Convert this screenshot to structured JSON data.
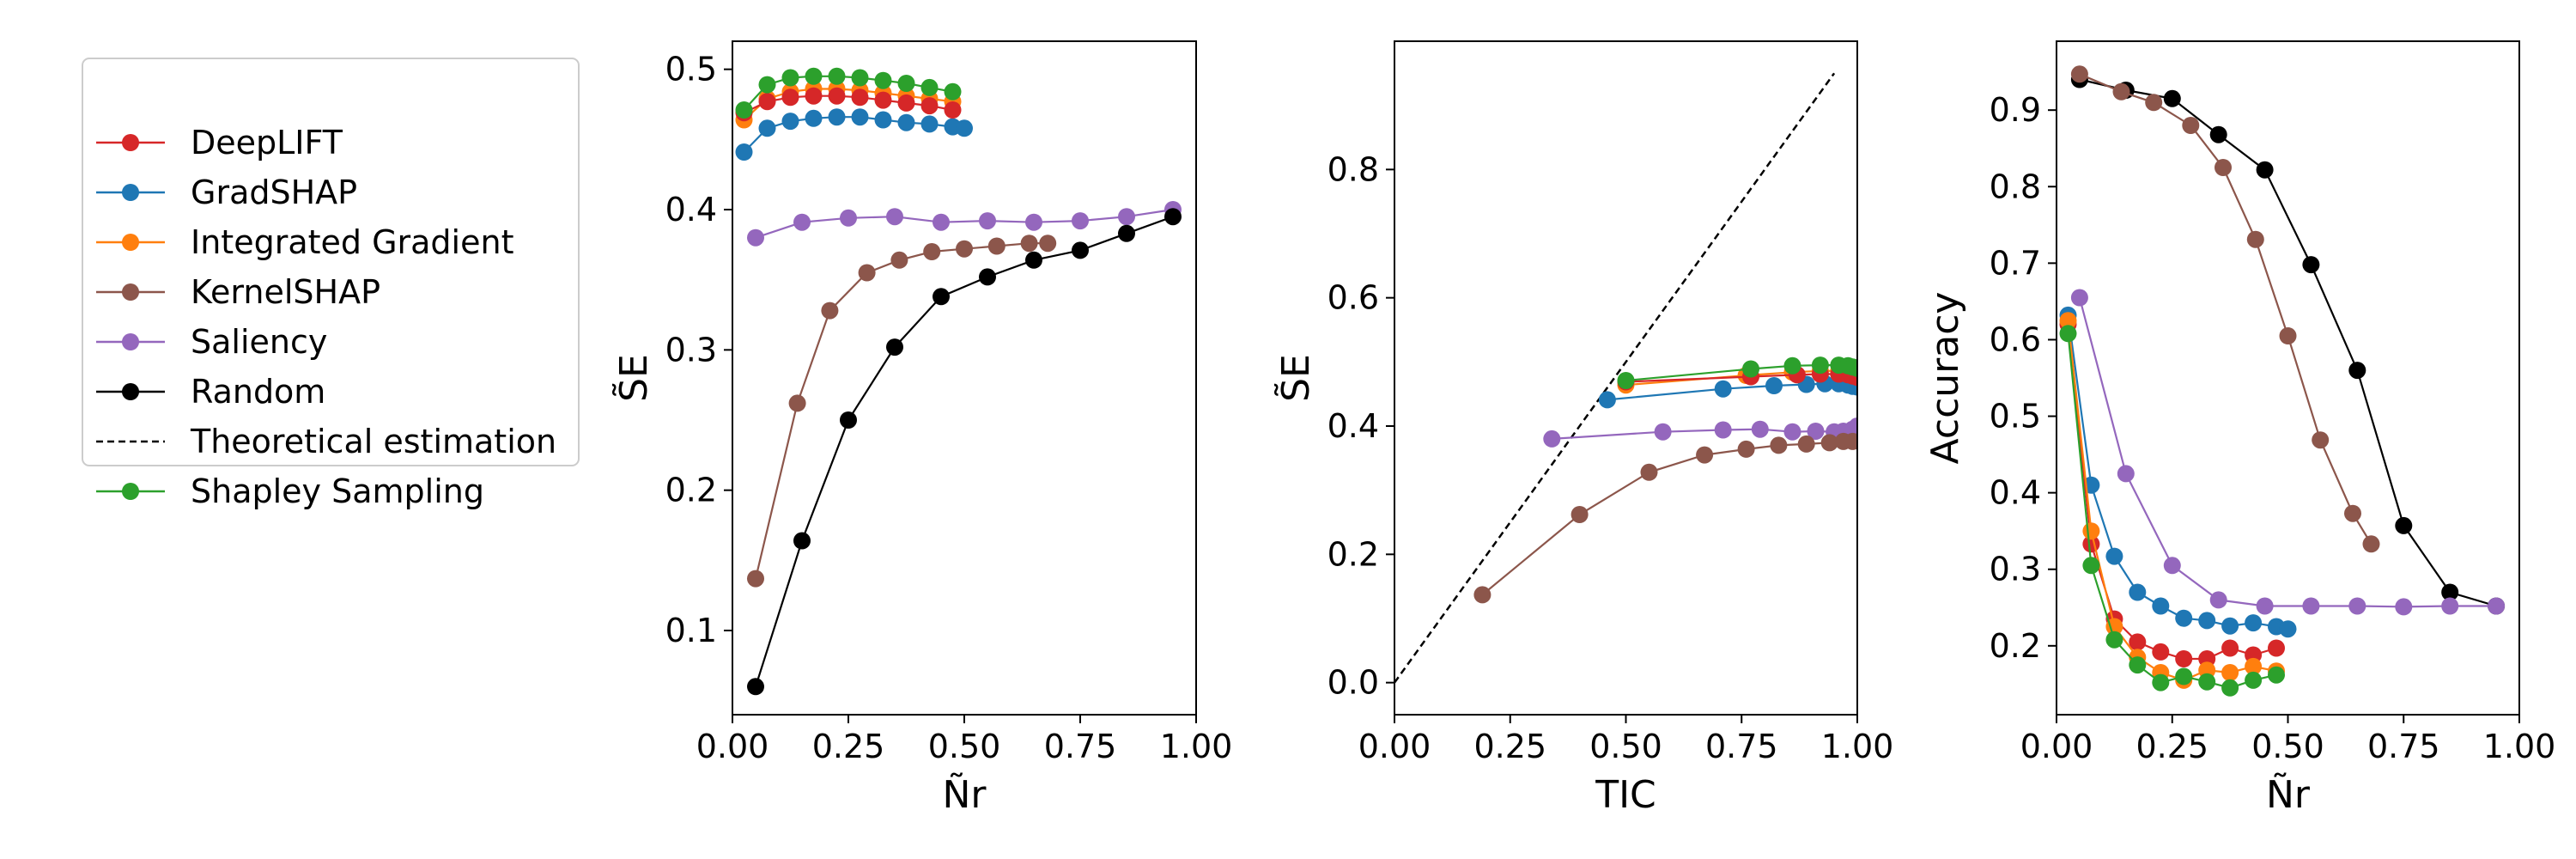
{
  "figure": {
    "legend": {
      "entries": [
        {
          "label": "DeepLIFT",
          "color": "#d62728",
          "style": "marker-line"
        },
        {
          "label": "GradSHAP",
          "color": "#1f77b4",
          "style": "marker-line"
        },
        {
          "label": "Integrated Gradient",
          "color": "#ff7f0e",
          "style": "marker-line"
        },
        {
          "label": "KernelSHAP",
          "color": "#8c564b",
          "style": "marker-line"
        },
        {
          "label": "Saliency",
          "color": "#9467bd",
          "style": "marker-line"
        },
        {
          "label": "Random",
          "color": "#000000",
          "style": "marker-line"
        },
        {
          "label": "Theoretical estimation",
          "color": "#000000",
          "style": "dashed"
        },
        {
          "label": "Shapley Sampling",
          "color": "#2ca02c",
          "style": "marker-line"
        }
      ]
    }
  },
  "chart_data": [
    {
      "type": "line",
      "title": "",
      "xlabel": "Ñr",
      "ylabel": "S̃E",
      "xlim": [
        0,
        1
      ],
      "ylim": [
        0.04,
        0.52
      ],
      "xticks": [
        "0.00",
        "0.25",
        "0.50",
        "0.75",
        "1.00"
      ],
      "yticks": [
        "0.1",
        "0.2",
        "0.3",
        "0.4",
        "0.5"
      ],
      "series": [
        {
          "name": "Saliency",
          "color": "#9467bd",
          "x": [
            0.05,
            0.15,
            0.25,
            0.35,
            0.45,
            0.55,
            0.65,
            0.75,
            0.85,
            0.95
          ],
          "y": [
            0.38,
            0.391,
            0.394,
            0.395,
            0.391,
            0.392,
            0.391,
            0.392,
            0.395,
            0.4
          ]
        },
        {
          "name": "KernelSHAP",
          "color": "#8c564b",
          "x": [
            0.05,
            0.14,
            0.21,
            0.29,
            0.36,
            0.43,
            0.5,
            0.57,
            0.64,
            0.68
          ],
          "y": [
            0.137,
            0.262,
            0.328,
            0.355,
            0.364,
            0.37,
            0.372,
            0.374,
            0.376,
            0.376
          ]
        },
        {
          "name": "Random",
          "color": "#000000",
          "x": [
            0.05,
            0.15,
            0.25,
            0.35,
            0.45,
            0.55,
            0.65,
            0.75,
            0.85,
            0.95
          ],
          "y": [
            0.06,
            0.164,
            0.25,
            0.302,
            0.338,
            0.352,
            0.364,
            0.371,
            0.383,
            0.395
          ]
        },
        {
          "name": "GradSHAP",
          "color": "#1f77b4",
          "x": [
            0.025,
            0.075,
            0.125,
            0.175,
            0.225,
            0.275,
            0.325,
            0.375,
            0.425,
            0.475,
            0.5
          ],
          "y": [
            0.441,
            0.458,
            0.463,
            0.465,
            0.466,
            0.466,
            0.464,
            0.462,
            0.461,
            0.459,
            0.458
          ]
        },
        {
          "name": "Integrated Gradient",
          "color": "#ff7f0e",
          "x": [
            0.025,
            0.075,
            0.125,
            0.175,
            0.225,
            0.275,
            0.325,
            0.375,
            0.425,
            0.475
          ],
          "y": [
            0.464,
            0.479,
            0.484,
            0.486,
            0.486,
            0.485,
            0.483,
            0.481,
            0.479,
            0.477
          ]
        },
        {
          "name": "DeepLIFT",
          "color": "#d62728",
          "x": [
            0.025,
            0.075,
            0.125,
            0.175,
            0.225,
            0.275,
            0.325,
            0.375,
            0.425,
            0.475
          ],
          "y": [
            0.469,
            0.477,
            0.48,
            0.481,
            0.481,
            0.48,
            0.478,
            0.476,
            0.474,
            0.471
          ]
        },
        {
          "name": "Shapley Sampling",
          "color": "#2ca02c",
          "x": [
            0.025,
            0.075,
            0.125,
            0.175,
            0.225,
            0.275,
            0.325,
            0.375,
            0.425,
            0.475
          ],
          "y": [
            0.471,
            0.489,
            0.494,
            0.495,
            0.495,
            0.494,
            0.492,
            0.49,
            0.487,
            0.484
          ]
        }
      ]
    },
    {
      "type": "line",
      "title": "",
      "xlabel": "TIC",
      "ylabel": "S̃E",
      "xlim": [
        0,
        1
      ],
      "ylim": [
        -0.05,
        1.0
      ],
      "xticks": [
        "0.00",
        "0.25",
        "0.50",
        "0.75",
        "1.00"
      ],
      "yticks": [
        "0.0",
        "0.2",
        "0.4",
        "0.6",
        "0.8"
      ],
      "series": [
        {
          "name": "Theoretical estimation",
          "color": "#000000",
          "dashed": true,
          "x": [
            0,
            0.95
          ],
          "y": [
            0,
            0.95
          ]
        },
        {
          "name": "Saliency",
          "color": "#9467bd",
          "x": [
            0.34,
            0.58,
            0.71,
            0.79,
            0.86,
            0.91,
            0.95,
            0.97,
            0.99,
            1.0
          ],
          "y": [
            0.38,
            0.391,
            0.394,
            0.395,
            0.391,
            0.392,
            0.391,
            0.392,
            0.395,
            0.4
          ]
        },
        {
          "name": "KernelSHAP",
          "color": "#8c564b",
          "x": [
            0.19,
            0.4,
            0.55,
            0.67,
            0.76,
            0.83,
            0.89,
            0.94,
            0.97,
            0.99
          ],
          "y": [
            0.137,
            0.262,
            0.328,
            0.355,
            0.364,
            0.37,
            0.372,
            0.374,
            0.376,
            0.376
          ]
        },
        {
          "name": "GradSHAP",
          "color": "#1f77b4",
          "x": [
            0.46,
            0.71,
            0.82,
            0.89,
            0.93,
            0.96,
            0.98,
            0.99,
            1.0
          ],
          "y": [
            0.441,
            0.458,
            0.463,
            0.465,
            0.466,
            0.466,
            0.464,
            0.462,
            0.461
          ]
        },
        {
          "name": "Integrated Gradient",
          "color": "#ff7f0e",
          "x": [
            0.5,
            0.76,
            0.86,
            0.92,
            0.96,
            0.98,
            0.99,
            1.0
          ],
          "y": [
            0.464,
            0.479,
            0.484,
            0.486,
            0.486,
            0.485,
            0.483,
            0.481
          ]
        },
        {
          "name": "DeepLIFT",
          "color": "#d62728",
          "x": [
            0.5,
            0.77,
            0.87,
            0.92,
            0.96,
            0.98,
            0.99,
            1.0
          ],
          "y": [
            0.469,
            0.477,
            0.48,
            0.481,
            0.481,
            0.48,
            0.478,
            0.476
          ]
        },
        {
          "name": "Shapley Sampling",
          "color": "#2ca02c",
          "x": [
            0.5,
            0.77,
            0.86,
            0.92,
            0.96,
            0.98,
            0.99,
            1.0
          ],
          "y": [
            0.471,
            0.489,
            0.494,
            0.495,
            0.495,
            0.494,
            0.492,
            0.49
          ]
        }
      ]
    },
    {
      "type": "line",
      "title": "",
      "xlabel": "Ñr",
      "ylabel": "Accuracy",
      "xlim": [
        0,
        1
      ],
      "ylim": [
        0.11,
        0.99
      ],
      "xticks": [
        "0.00",
        "0.25",
        "0.50",
        "0.75",
        "1.00"
      ],
      "yticks": [
        "0.2",
        "0.3",
        "0.4",
        "0.5",
        "0.6",
        "0.7",
        "0.8",
        "0.9"
      ],
      "series": [
        {
          "name": "Random",
          "color": "#000000",
          "x": [
            0.05,
            0.15,
            0.25,
            0.35,
            0.45,
            0.55,
            0.65,
            0.75,
            0.85,
            0.95
          ],
          "y": [
            0.94,
            0.926,
            0.915,
            0.868,
            0.822,
            0.698,
            0.56,
            0.357,
            0.27,
            0.252
          ]
        },
        {
          "name": "KernelSHAP",
          "color": "#8c564b",
          "x": [
            0.05,
            0.14,
            0.21,
            0.29,
            0.36,
            0.43,
            0.5,
            0.57,
            0.64,
            0.68
          ],
          "y": [
            0.947,
            0.924,
            0.91,
            0.88,
            0.825,
            0.731,
            0.605,
            0.469,
            0.373,
            0.333
          ]
        },
        {
          "name": "Saliency",
          "color": "#9467bd",
          "x": [
            0.05,
            0.15,
            0.25,
            0.35,
            0.45,
            0.55,
            0.65,
            0.75,
            0.85,
            0.95
          ],
          "y": [
            0.655,
            0.425,
            0.305,
            0.26,
            0.252,
            0.252,
            0.252,
            0.251,
            0.252,
            0.252
          ]
        },
        {
          "name": "GradSHAP",
          "color": "#1f77b4",
          "x": [
            0.025,
            0.075,
            0.125,
            0.175,
            0.225,
            0.275,
            0.325,
            0.375,
            0.425,
            0.475,
            0.5
          ],
          "y": [
            0.632,
            0.41,
            0.317,
            0.27,
            0.252,
            0.236,
            0.233,
            0.226,
            0.23,
            0.225,
            0.222
          ]
        },
        {
          "name": "DeepLIFT",
          "color": "#d62728",
          "x": [
            0.025,
            0.075,
            0.125,
            0.175,
            0.225,
            0.275,
            0.325,
            0.375,
            0.425,
            0.475
          ],
          "y": [
            0.62,
            0.333,
            0.235,
            0.205,
            0.192,
            0.183,
            0.183,
            0.197,
            0.188,
            0.197
          ]
        },
        {
          "name": "Integrated Gradient",
          "color": "#ff7f0e",
          "x": [
            0.025,
            0.075,
            0.125,
            0.175,
            0.225,
            0.275,
            0.325,
            0.375,
            0.425,
            0.475
          ],
          "y": [
            0.625,
            0.35,
            0.225,
            0.185,
            0.165,
            0.155,
            0.168,
            0.165,
            0.173,
            0.167
          ]
        },
        {
          "name": "Shapley Sampling",
          "color": "#2ca02c",
          "x": [
            0.025,
            0.075,
            0.125,
            0.175,
            0.225,
            0.275,
            0.325,
            0.375,
            0.425,
            0.475
          ],
          "y": [
            0.608,
            0.305,
            0.208,
            0.175,
            0.152,
            0.16,
            0.153,
            0.145,
            0.155,
            0.162
          ]
        }
      ]
    }
  ]
}
